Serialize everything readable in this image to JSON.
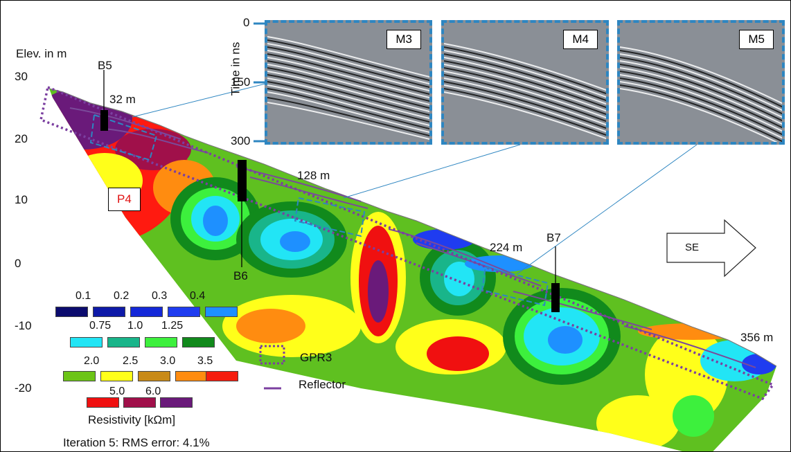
{
  "axis": {
    "y_title": "Elev. in m",
    "y_ticks": [
      "30",
      "20",
      "10",
      "0",
      "-10",
      "-20"
    ]
  },
  "gpr_axis": {
    "title": "Time in ns",
    "ticks": [
      "0",
      "150",
      "300"
    ]
  },
  "gpr_panels": [
    {
      "label": "M3"
    },
    {
      "label": "M4"
    },
    {
      "label": "M5"
    }
  ],
  "distances": [
    "32 m",
    "128 m",
    "224 m",
    "356 m"
  ],
  "boreholes": [
    "B5",
    "B6",
    "B7"
  ],
  "profile_label": "P4",
  "direction": "SE",
  "legend": {
    "rows": [
      {
        "labels": [
          "0.1",
          "0.2",
          "0.3",
          "0.4"
        ],
        "colors": [
          "#0b0b6e",
          "#0e1aa8",
          "#1428d8",
          "#1f3cf0",
          "#1e90ff"
        ]
      },
      {
        "labels": [
          "0.75",
          "1.0",
          "1.25"
        ],
        "colors": [
          "#22e5f5",
          "#19b58a",
          "#3df03d",
          "#118a1c"
        ]
      },
      {
        "labels": [
          "2.0",
          "2.5",
          "3.0",
          "3.5"
        ],
        "colors": [
          "#6cc417",
          "#ffff1a",
          "#c88a17",
          "#ff8c10",
          "#f51d0f"
        ]
      },
      {
        "labels": [
          "5.0",
          "6.0"
        ],
        "colors": [
          "#f01010",
          "#a0104a",
          "#6a1a7a"
        ]
      }
    ],
    "title": "Resistivity [kΩm]"
  },
  "key": {
    "gpr_label": "GPR3",
    "reflector_label": "Reflector"
  },
  "footer": "Iteration 5:  RMS error: 4.1%"
}
